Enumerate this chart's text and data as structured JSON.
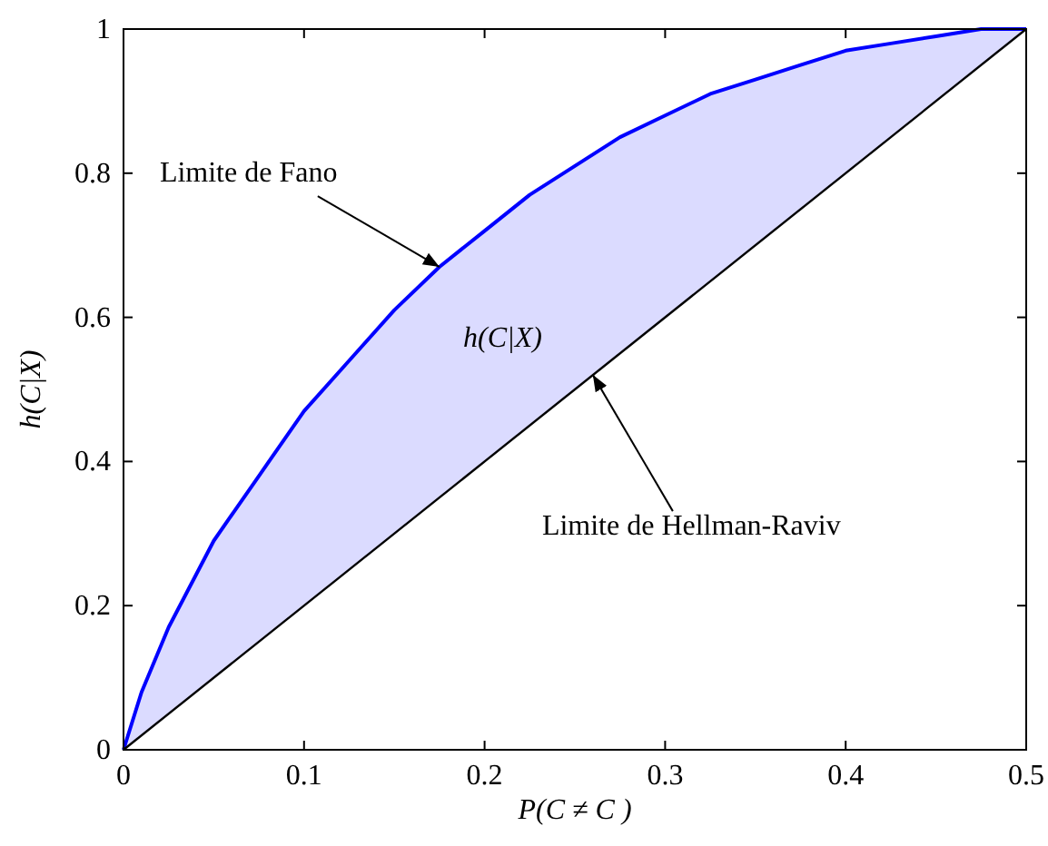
{
  "chart_data": {
    "type": "line",
    "xlabel": "P(C ≠ C )",
    "ylabel": "h(C|X)",
    "xlim": [
      0,
      0.5
    ],
    "ylim": [
      0,
      1
    ],
    "xticks": [
      0,
      0.1,
      0.2,
      0.3,
      0.4,
      0.5
    ],
    "yticks": [
      0,
      0.2,
      0.4,
      0.6,
      0.8,
      1
    ],
    "grid": false,
    "series": [
      {
        "color": "#0000ff",
        "x": [
          0,
          0.01,
          0.025,
          0.05,
          0.075,
          0.1,
          0.125,
          0.15,
          0.175,
          0.2,
          0.225,
          0.25,
          0.275,
          0.3,
          0.325,
          0.35,
          0.375,
          0.4,
          0.425,
          0.45,
          0.475,
          0.5
        ],
        "values": [
          0,
          0.08,
          0.17,
          0.29,
          0.38,
          0.47,
          0.54,
          0.61,
          0.67,
          0.72,
          0.77,
          0.81,
          0.85,
          0.88,
          0.91,
          0.93,
          0.95,
          0.97,
          0.98,
          0.99,
          1,
          1
        ],
        "lower": [
          0,
          0.02,
          0.05,
          0.1,
          0.15,
          0.2,
          0.25,
          0.3,
          0.35,
          0.4,
          0.45,
          0.5,
          0.55,
          0.6,
          0.65,
          0.7,
          0.75,
          0.8,
          0.85,
          0.9,
          0.95,
          1
        ],
        "upper": [
          0,
          0.08,
          0.17,
          0.29,
          0.38,
          0.47,
          0.54,
          0.61,
          0.67,
          0.72,
          0.77,
          0.81,
          0.85,
          0.88,
          0.91,
          0.93,
          0.95,
          0.97,
          0.98,
          0.99,
          1,
          1
        ]
      },
      {
        "color": "#000000",
        "x": [
          0,
          0.5
        ],
        "values": [
          0,
          1
        ]
      }
    ],
    "annotations": [
      {
        "text": "Limite de Fano",
        "x": 0.175,
        "y": 0.67
      },
      "h(C|X)",
      {
        "text": "Limite de Hellman-Raviv",
        "x": 0.26,
        "y": 0.52
      }
    ]
  }
}
